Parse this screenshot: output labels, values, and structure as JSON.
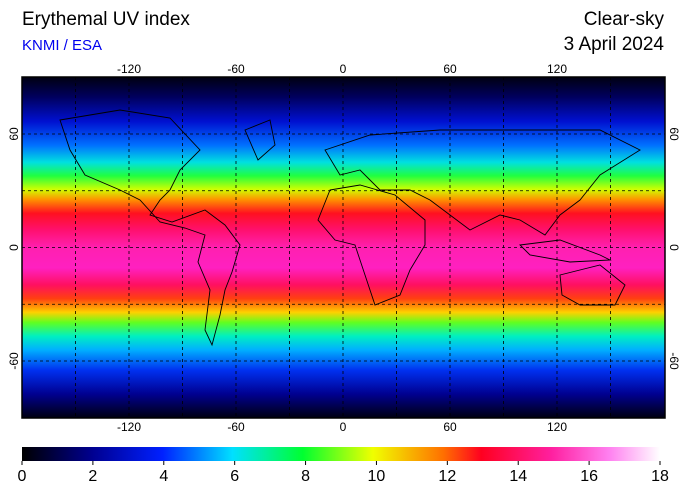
{
  "header": {
    "title": "Erythemal UV index",
    "source": "KNMI / ESA",
    "condition": "Clear-sky",
    "date": "3 April 2024"
  },
  "map": {
    "lon_ticks": [
      -120,
      -60,
      0,
      60,
      120
    ],
    "lat_ticks": [
      60,
      0,
      -60
    ]
  },
  "colorbar": {
    "ticks": [
      0,
      2,
      4,
      6,
      8,
      10,
      12,
      14,
      16,
      18
    ]
  }
}
